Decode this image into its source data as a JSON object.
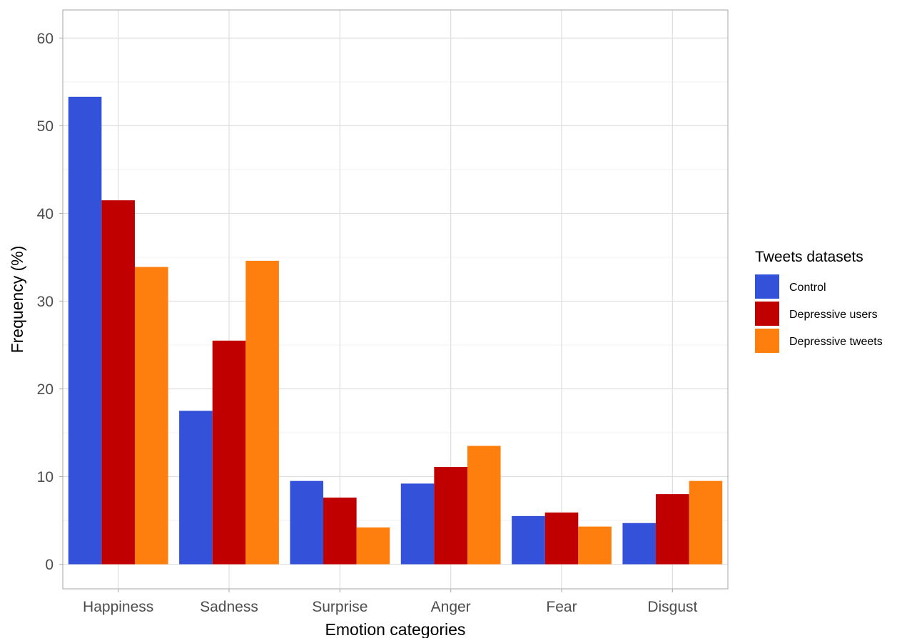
{
  "chart_data": {
    "type": "bar",
    "title": "",
    "xlabel": "Emotion categories",
    "ylabel": "Frequency (%)",
    "ylim": [
      -2.8,
      63.2
    ],
    "yticks": [
      0,
      10,
      20,
      30,
      40,
      50,
      60
    ],
    "categories": [
      "Happiness",
      "Sadness",
      "Surprise",
      "Anger",
      "Fear",
      "Disgust"
    ],
    "grid": true,
    "legend": {
      "title": "Tweets datasets",
      "position": "right"
    },
    "series": [
      {
        "name": "Control",
        "color": "#3352d9",
        "values": [
          53.3,
          17.5,
          9.5,
          9.2,
          5.5,
          4.7
        ]
      },
      {
        "name": "Depressive users",
        "color": "#c00000",
        "values": [
          41.5,
          25.5,
          7.6,
          11.1,
          5.9,
          8.0
        ]
      },
      {
        "name": "Depressive tweets",
        "color": "#ff7f0e",
        "values": [
          33.9,
          34.6,
          4.2,
          13.5,
          4.3,
          9.5
        ]
      }
    ]
  }
}
